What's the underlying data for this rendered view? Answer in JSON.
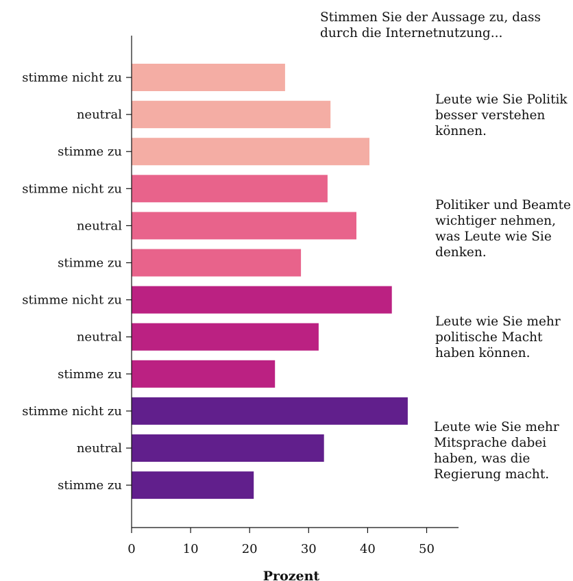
{
  "chart_data": {
    "type": "bar",
    "orientation": "horizontal",
    "title": "Stimmen Sie der Aussage zu, dass\ndurch die Internetnutzung...",
    "xlabel": "Prozent",
    "ylabel": "",
    "xlim": [
      0,
      55
    ],
    "xticks": [
      0,
      10,
      20,
      30,
      40,
      50
    ],
    "grid": false,
    "legend": "none",
    "groups": [
      {
        "name": "Leute wie Sie Politik\nbesser verstehen\nkönnen.",
        "color": "#f4ada4",
        "categories": [
          "stimme nicht zu",
          "neutral",
          "stimme zu"
        ],
        "values": [
          26,
          33.7,
          40.3
        ]
      },
      {
        "name": "Politiker und Beamte\nwichtiger nehmen,\nwas Leute wie Sie\ndenken.",
        "color": "#e8638b",
        "categories": [
          "stimme nicht zu",
          "neutral",
          "stimme zu"
        ],
        "values": [
          33.2,
          38.1,
          28.7
        ]
      },
      {
        "name": "Leute wie Sie mehr\npolitische Macht\nhaben können.",
        "color": "#bb2182",
        "categories": [
          "stimme nicht zu",
          "neutral",
          "stimme zu"
        ],
        "values": [
          44.1,
          31.7,
          24.3
        ]
      },
      {
        "name": "Leute wie Sie mehr\nMitsprache dabei\nhaben, was die\nRegierung macht.",
        "color": "#611f8c",
        "categories": [
          "stimme nicht zu",
          "neutral",
          "stimme zu"
        ],
        "values": [
          46.8,
          32.6,
          20.7
        ]
      }
    ]
  }
}
